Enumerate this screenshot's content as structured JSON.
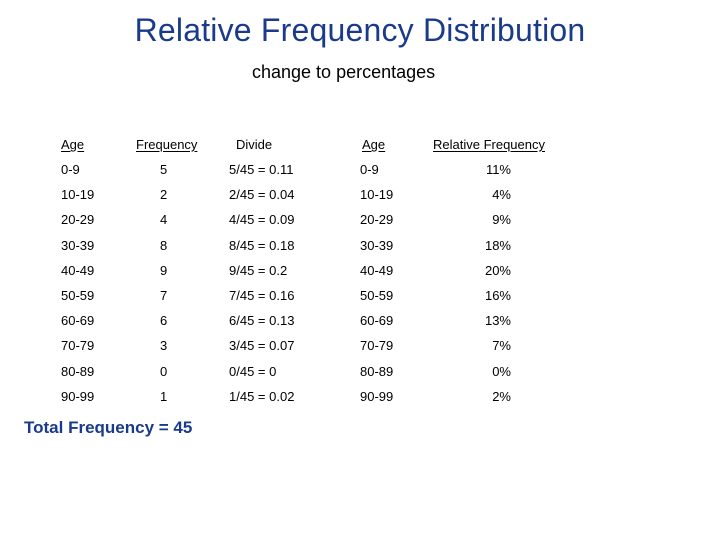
{
  "slide": {
    "title": "Relative Frequency Distribution",
    "subtitle": "change to percentages",
    "total_label": "Total Frequency = 45"
  },
  "table": {
    "headers": {
      "age": "Age",
      "frequency": "Frequency",
      "divide": "Divide",
      "age2": "Age",
      "relative": "Relative Frequency"
    },
    "rows": [
      {
        "age": "0-9",
        "frequency": "5",
        "divide": "5/45 = 0.11",
        "age2": "0-9",
        "relative": "11%"
      },
      {
        "age": "10-19",
        "frequency": "2",
        "divide": "2/45 = 0.04",
        "age2": "10-19",
        "relative": "4%"
      },
      {
        "age": "20-29",
        "frequency": "4",
        "divide": "4/45 = 0.09",
        "age2": "20-29",
        "relative": "9%"
      },
      {
        "age": "30-39",
        "frequency": "8",
        "divide": "8/45 = 0.18",
        "age2": "30-39",
        "relative": "18%"
      },
      {
        "age": "40-49",
        "frequency": "9",
        "divide": "9/45 = 0.2",
        "age2": "40-49",
        "relative": "20%"
      },
      {
        "age": "50-59",
        "frequency": "7",
        "divide": "7/45 = 0.16",
        "age2": "50-59",
        "relative": "16%"
      },
      {
        "age": "60-69",
        "frequency": "6",
        "divide": "6/45 = 0.13",
        "age2": "60-69",
        "relative": "13%"
      },
      {
        "age": "70-79",
        "frequency": "3",
        "divide": "3/45 = 0.07",
        "age2": "70-79",
        "relative": "7%"
      },
      {
        "age": "80-89",
        "frequency": "0",
        "divide": "0/45 = 0",
        "age2": "80-89",
        "relative": "0%"
      },
      {
        "age": "90-99",
        "frequency": "1",
        "divide": "1/45 = 0.02",
        "age2": "90-99",
        "relative": "2%"
      }
    ]
  },
  "colors": {
    "title": "#1a3a8c",
    "text": "#000000",
    "background": "#ffffff"
  }
}
